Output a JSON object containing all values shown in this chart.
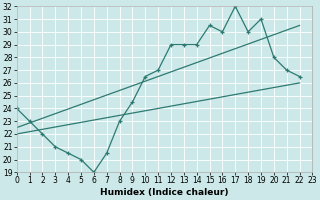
{
  "xlabel": "Humidex (Indice chaleur)",
  "bg_color": "#cce8e8",
  "line_color": "#2d7a72",
  "grid_color": "#ffffff",
  "x_main": [
    0,
    1,
    2,
    3,
    4,
    5,
    6,
    7,
    8,
    9,
    10,
    11,
    12,
    13,
    14,
    15,
    16,
    17,
    18,
    19,
    20,
    21,
    22
  ],
  "y_main": [
    24,
    23,
    22,
    21,
    20.5,
    20,
    19,
    20.5,
    23,
    24.5,
    26.5,
    27,
    29,
    29,
    29,
    30.5,
    30,
    32,
    30,
    31,
    28,
    27,
    26.5
  ],
  "line2_x": [
    0,
    22
  ],
  "line2_y": [
    22.5,
    30.5
  ],
  "line3_x": [
    0,
    22
  ],
  "line3_y": [
    22.0,
    26.0
  ],
  "ylim": [
    19,
    32
  ],
  "xlim": [
    0,
    23
  ],
  "yticks": [
    19,
    20,
    21,
    22,
    23,
    24,
    25,
    26,
    27,
    28,
    29,
    30,
    31,
    32
  ],
  "xticks": [
    0,
    1,
    2,
    3,
    4,
    5,
    6,
    7,
    8,
    9,
    10,
    11,
    12,
    13,
    14,
    15,
    16,
    17,
    18,
    19,
    20,
    21,
    22,
    23
  ],
  "tick_fontsize": 5.5,
  "xlabel_fontsize": 6.5
}
